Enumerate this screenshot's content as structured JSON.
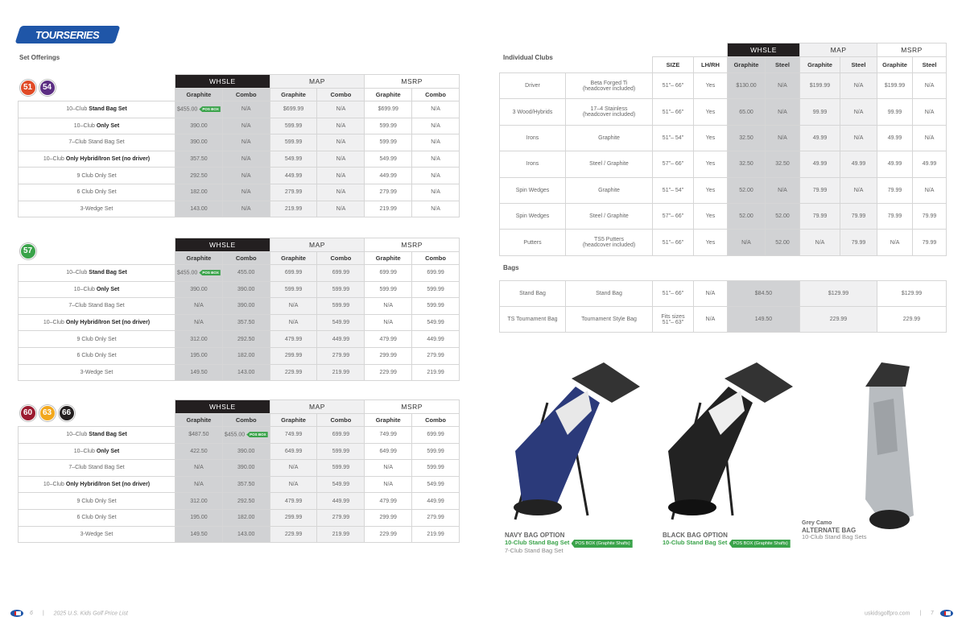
{
  "brand": {
    "logo_text": "TOURSERIES"
  },
  "left": {
    "section_title": "Set Offerings",
    "group_headers": [
      "WHSLE",
      "MAP",
      "MSRP"
    ],
    "sub_headers": [
      "Graphite",
      "Combo",
      "Graphite",
      "Combo",
      "Graphite",
      "Combo"
    ],
    "pos_box_label": "POS BOX",
    "tables": [
      {
        "badges": [
          {
            "size": "51",
            "color": "#e04a26"
          },
          {
            "size": "54",
            "color": "#5b2d82"
          }
        ],
        "rows": [
          {
            "pre": "10–Club ",
            "bold": "Stand Bag Set",
            "post": "",
            "values": [
              "$455.00",
              "N/A",
              "$699.99",
              "N/A",
              "$699.99",
              "N/A"
            ],
            "pos_col": 0
          },
          {
            "pre": "10–Club ",
            "bold": "Only Set",
            "post": "",
            "values": [
              "390.00",
              "N/A",
              "599.99",
              "N/A",
              "599.99",
              "N/A"
            ]
          },
          {
            "pre": "7–Club Stand Bag Set",
            "bold": "",
            "post": "",
            "values": [
              "390.00",
              "N/A",
              "599.99",
              "N/A",
              "599.99",
              "N/A"
            ]
          },
          {
            "pre": "10–Club ",
            "bold": "Only Hybrid/Iron Set (no driver)",
            "post": "",
            "values": [
              "357.50",
              "N/A",
              "549.99",
              "N/A",
              "549.99",
              "N/A"
            ]
          },
          {
            "pre": "9 Club Only Set",
            "bold": "",
            "post": "",
            "values": [
              "292.50",
              "N/A",
              "449.99",
              "N/A",
              "449.99",
              "N/A"
            ]
          },
          {
            "pre": "6 Club Only Set",
            "bold": "",
            "post": "",
            "values": [
              "182.00",
              "N/A",
              "279.99",
              "N/A",
              "279.99",
              "N/A"
            ]
          },
          {
            "pre": "3-Wedge Set",
            "bold": "",
            "post": "",
            "values": [
              "143.00",
              "N/A",
              "219.99",
              "N/A",
              "219.99",
              "N/A"
            ]
          }
        ]
      },
      {
        "badges": [
          {
            "size": "57",
            "color": "#3aa34a"
          }
        ],
        "rows": [
          {
            "pre": "10–Club ",
            "bold": "Stand Bag Set",
            "post": "",
            "values": [
              "$455.00",
              "455.00",
              "699.99",
              "699.99",
              "699.99",
              "699.99"
            ],
            "pos_col": 0
          },
          {
            "pre": "10–Club ",
            "bold": "Only Set",
            "post": "",
            "values": [
              "390.00",
              "390.00",
              "599.99",
              "599.99",
              "599.99",
              "599.99"
            ]
          },
          {
            "pre": "7–Club Stand Bag Set",
            "bold": "",
            "post": "",
            "values": [
              "N/A",
              "390.00",
              "N/A",
              "599.99",
              "N/A",
              "599.99"
            ]
          },
          {
            "pre": "10–Club ",
            "bold": "Only Hybrid/Iron Set (no driver)",
            "post": "",
            "values": [
              "N/A",
              "357.50",
              "N/A",
              "549.99",
              "N/A",
              "549.99"
            ]
          },
          {
            "pre": "9 Club Only Set",
            "bold": "",
            "post": "",
            "values": [
              "312.00",
              "292.50",
              "479.99",
              "449.99",
              "479.99",
              "449.99"
            ]
          },
          {
            "pre": "6 Club Only Set",
            "bold": "",
            "post": "",
            "values": [
              "195.00",
              "182.00",
              "299.99",
              "279.99",
              "299.99",
              "279.99"
            ]
          },
          {
            "pre": "3-Wedge Set",
            "bold": "",
            "post": "",
            "values": [
              "149.50",
              "143.00",
              "229.99",
              "219.99",
              "229.99",
              "219.99"
            ]
          }
        ]
      },
      {
        "badges": [
          {
            "size": "60",
            "color": "#9b1b30"
          },
          {
            "size": "63",
            "color": "#f2a81d"
          },
          {
            "size": "66",
            "color": "#231f20"
          }
        ],
        "rows": [
          {
            "pre": "10–Club ",
            "bold": "Stand Bag Set",
            "post": "",
            "values": [
              "$487.50",
              "$455.00",
              "749.99",
              "699.99",
              "749.99",
              "699.99"
            ],
            "pos_col": 1
          },
          {
            "pre": "10–Club ",
            "bold": "Only Set",
            "post": "",
            "values": [
              "422.50",
              "390.00",
              "649.99",
              "599.99",
              "649.99",
              "599.99"
            ]
          },
          {
            "pre": "7–Club Stand Bag Set",
            "bold": "",
            "post": "",
            "values": [
              "N/A",
              "390.00",
              "N/A",
              "599.99",
              "N/A",
              "599.99"
            ]
          },
          {
            "pre": "10–Club ",
            "bold": "Only Hybrid/Iron Set (no driver)",
            "post": "",
            "values": [
              "N/A",
              "357.50",
              "N/A",
              "549.99",
              "N/A",
              "549.99"
            ]
          },
          {
            "pre": "9 Club Only Set",
            "bold": "",
            "post": "",
            "values": [
              "312.00",
              "292.50",
              "479.99",
              "449.99",
              "479.99",
              "449.99"
            ]
          },
          {
            "pre": "6 Club Only Set",
            "bold": "",
            "post": "",
            "values": [
              "195.00",
              "182.00",
              "299.99",
              "279.99",
              "299.99",
              "279.99"
            ]
          },
          {
            "pre": "3-Wedge Set",
            "bold": "",
            "post": "",
            "values": [
              "149.50",
              "143.00",
              "229.99",
              "219.99",
              "229.99",
              "219.99"
            ]
          }
        ]
      }
    ]
  },
  "right": {
    "clubs_title": "Individual Clubs",
    "group_headers": [
      "WHSLE",
      "MAP",
      "MSRP"
    ],
    "col_headers": [
      "SIZE",
      "LH/RH",
      "Graphite",
      "Steel",
      "Graphite",
      "Steel",
      "Graphite",
      "Steel"
    ],
    "clubs": [
      {
        "name": "Driver",
        "desc": [
          "Beta Forged Ti",
          "(headcover included)"
        ],
        "size": "51\"– 66\"",
        "hand": "Yes",
        "values": [
          "$130.00",
          "N/A",
          "$199.99",
          "N/A",
          "$199.99",
          "N/A"
        ]
      },
      {
        "name": "3 Wood/Hybrids",
        "desc": [
          "17–4 Stainless",
          "(headcover included)"
        ],
        "size": "51\"– 66\"",
        "hand": "Yes",
        "values": [
          "65.00",
          "N/A",
          "99.99",
          "N/A",
          "99.99",
          "N/A"
        ]
      },
      {
        "name": "Irons",
        "desc": [
          "Graphite"
        ],
        "size": "51\"– 54\"",
        "hand": "Yes",
        "values": [
          "32.50",
          "N/A",
          "49.99",
          "N/A",
          "49.99",
          "N/A"
        ]
      },
      {
        "name": "Irons",
        "desc": [
          "Steel / Graphite"
        ],
        "size": "57\"– 66\"",
        "hand": "Yes",
        "values": [
          "32.50",
          "32.50",
          "49.99",
          "49.99",
          "49.99",
          "49.99"
        ]
      },
      {
        "name": "Spin Wedges",
        "desc": [
          "Graphite"
        ],
        "size": "51\"– 54\"",
        "hand": "Yes",
        "values": [
          "52.00",
          "N/A",
          "79.99",
          "N/A",
          "79.99",
          "N/A"
        ]
      },
      {
        "name": "Spin Wedges",
        "desc": [
          "Steel / Graphite"
        ],
        "size": "57\"– 66\"",
        "hand": "Yes",
        "values": [
          "52.00",
          "52.00",
          "79.99",
          "79.99",
          "79.99",
          "79.99"
        ]
      },
      {
        "name": "Putters",
        "desc": [
          "TS5 Putters",
          "(headcover included)"
        ],
        "size": "51\"– 66\"",
        "hand": "Yes",
        "values": [
          "N/A",
          "52.00",
          "N/A",
          "79.99",
          "N/A",
          "79.99"
        ]
      }
    ],
    "bags_title": "Bags",
    "bags": [
      {
        "name": "Stand Bag",
        "desc": "Stand Bag",
        "size": [
          "51\"– 66\""
        ],
        "hand": "N/A",
        "values": [
          "$84.50",
          "$129.99",
          "$129.99"
        ]
      },
      {
        "name": "TS Tournament Bag",
        "desc": "Tournament Style Bag",
        "size": [
          "Fits sizes",
          "51\"– 63\""
        ],
        "hand": "N/A",
        "values": [
          "149.50",
          "229.99",
          "229.99"
        ]
      }
    ],
    "captions": [
      {
        "title": "NAVY BAG OPTION",
        "green": "10-Club Stand Bag Set",
        "pos": "POS BOX (Graphite Shafts)",
        "sub": "7-Club Stand Bag Set",
        "color": "#2b3a7a"
      },
      {
        "title": "BLACK BAG OPTION",
        "green": "10-Club Stand Bag Set",
        "pos": "POS BOX (Graphite Shafts)",
        "color": "#222222"
      },
      {
        "pre": "Grey Camo",
        "title": "ALTERNATE BAG",
        "sub": "10-Club Stand Bag Sets",
        "color": "#b8bcc0"
      }
    ]
  },
  "footer": {
    "left_page": "6",
    "left_text": "2025 U.S. Kids Golf Price List",
    "sep": "|",
    "right_url": "uskidsgolfpro.com",
    "right_page": "7"
  }
}
